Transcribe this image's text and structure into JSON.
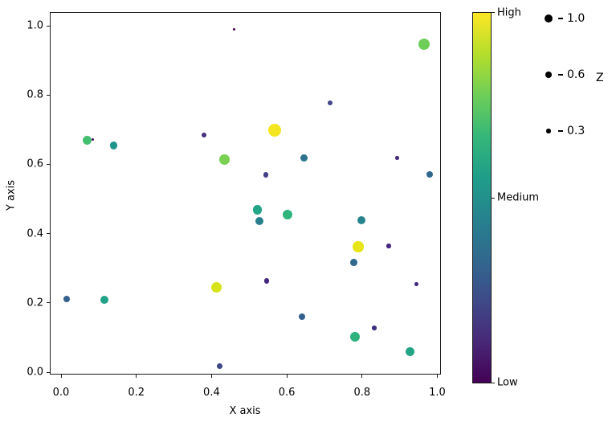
{
  "chart_data": {
    "type": "scatter",
    "title": "",
    "xlabel": "X axis",
    "ylabel": "Y axis",
    "xlim": [
      0.0,
      1.0
    ],
    "ylim": [
      0.0,
      1.0
    ],
    "grid": false,
    "x_tick_labels": [
      "0.0",
      "0.2",
      "0.4",
      "0.6",
      "0.8",
      "1.0"
    ],
    "y_tick_labels": [
      "0.0",
      "0.2",
      "0.4",
      "0.6",
      "0.8",
      "1.0"
    ],
    "points": [
      {
        "x": 0.46,
        "y": 0.99,
        "z": 0.05,
        "color": "#440154"
      },
      {
        "x": 0.07,
        "y": 0.67,
        "z": 0.5,
        "color": "#44bf70"
      },
      {
        "x": 0.085,
        "y": 0.672,
        "z": 0.035,
        "color": "#470d60"
      },
      {
        "x": 0.14,
        "y": 0.654,
        "z": 0.35,
        "color": "#1f948c"
      },
      {
        "x": 0.38,
        "y": 0.684,
        "z": 0.14,
        "color": "#46327e"
      },
      {
        "x": 0.435,
        "y": 0.614,
        "z": 0.63,
        "color": "#7ad151"
      },
      {
        "x": 0.965,
        "y": 0.947,
        "z": 0.77,
        "color": "#6ece58"
      },
      {
        "x": 0.715,
        "y": 0.777,
        "z": 0.14,
        "color": "#414487"
      },
      {
        "x": 0.567,
        "y": 0.699,
        "z": 1.0,
        "color": "#f4e61e"
      },
      {
        "x": 0.645,
        "y": 0.618,
        "z": 0.32,
        "color": "#2c728e"
      },
      {
        "x": 0.893,
        "y": 0.618,
        "z": 0.08,
        "color": "#472d7b"
      },
      {
        "x": 0.98,
        "y": 0.571,
        "z": 0.3,
        "color": "#31688e"
      },
      {
        "x": 0.544,
        "y": 0.569,
        "z": 0.17,
        "color": "#423f85"
      },
      {
        "x": 0.016,
        "y": 0.21,
        "z": 0.25,
        "color": "#34618d"
      },
      {
        "x": 0.115,
        "y": 0.209,
        "z": 0.43,
        "color": "#20a386"
      },
      {
        "x": 0.413,
        "y": 0.245,
        "z": 0.69,
        "color": "#d8e219"
      },
      {
        "x": 0.422,
        "y": 0.018,
        "z": 0.17,
        "color": "#3f4889"
      },
      {
        "x": 0.522,
        "y": 0.469,
        "z": 0.5,
        "color": "#21a585"
      },
      {
        "x": 0.528,
        "y": 0.436,
        "z": 0.39,
        "color": "#277f8e"
      },
      {
        "x": 0.602,
        "y": 0.455,
        "z": 0.56,
        "color": "#2fb47c"
      },
      {
        "x": 0.798,
        "y": 0.439,
        "z": 0.43,
        "color": "#25848e"
      },
      {
        "x": 0.79,
        "y": 0.362,
        "z": 0.69,
        "color": "#e7e419"
      },
      {
        "x": 0.871,
        "y": 0.364,
        "z": 0.11,
        "color": "#452781"
      },
      {
        "x": 0.778,
        "y": 0.316,
        "z": 0.3,
        "color": "#2e6a8e"
      },
      {
        "x": 0.546,
        "y": 0.264,
        "z": 0.17,
        "color": "#45277d"
      },
      {
        "x": 0.945,
        "y": 0.254,
        "z": 0.09,
        "color": "#3f2582"
      },
      {
        "x": 0.64,
        "y": 0.16,
        "z": 0.28,
        "color": "#35608d"
      },
      {
        "x": 0.832,
        "y": 0.128,
        "z": 0.12,
        "color": "#3b2d80"
      },
      {
        "x": 0.781,
        "y": 0.101,
        "z": 0.56,
        "color": "#2db27d"
      },
      {
        "x": 0.927,
        "y": 0.059,
        "z": 0.47,
        "color": "#22a485"
      }
    ],
    "colorbar": {
      "tick_labels": [
        "High",
        "Medium",
        "Low"
      ],
      "gradient_bottom_to_top": [
        "#440154",
        "#482878",
        "#3e4a89",
        "#31688e",
        "#26828e",
        "#1f9e89",
        "#35b779",
        "#6ece58",
        "#b5de2b",
        "#fde725"
      ]
    },
    "size_legend": {
      "title": "Z",
      "entries": [
        {
          "label": "1.0",
          "value": 1.0
        },
        {
          "label": "0.6",
          "value": 0.6
        },
        {
          "label": "0.3",
          "value": 0.3
        }
      ]
    }
  }
}
